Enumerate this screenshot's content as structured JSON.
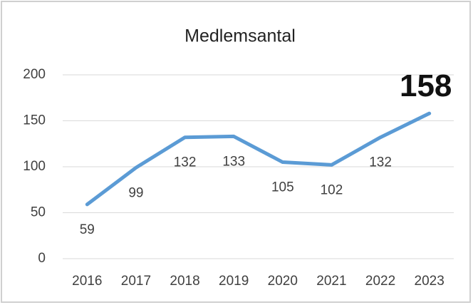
{
  "chart_data": {
    "type": "line",
    "title": "Medlemsantal",
    "categories": [
      "2016",
      "2017",
      "2018",
      "2019",
      "2020",
      "2021",
      "2022",
      "2023"
    ],
    "values": [
      59,
      99,
      132,
      133,
      105,
      102,
      132,
      158
    ],
    "color": "#5b9bd5",
    "ylim": [
      0,
      200
    ],
    "yticks": [
      0,
      50,
      100,
      150,
      200
    ],
    "grid": true
  }
}
